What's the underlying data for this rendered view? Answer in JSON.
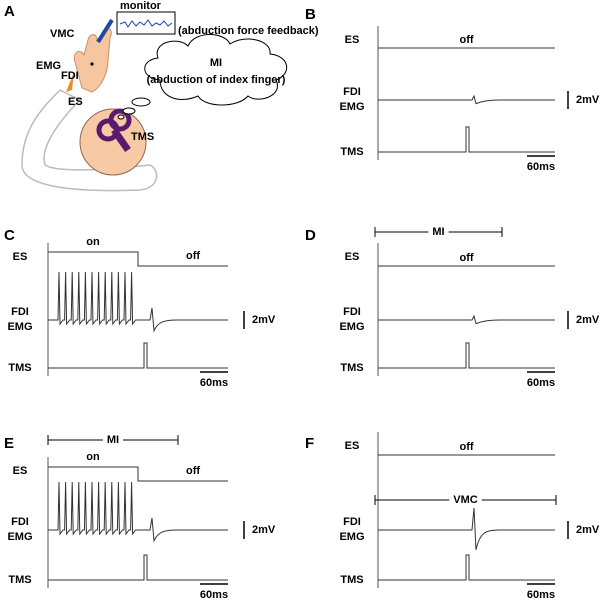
{
  "panel_a": {
    "label": "A",
    "monitor": "monitor",
    "feedback": "(abduction force feedback)",
    "vmc": "VMC",
    "emg": "EMG",
    "fdi": "FDI",
    "es": "ES",
    "tms": "TMS",
    "mi_title": "MI",
    "mi_detail": "(abduction of index finger)"
  },
  "panels": [
    {
      "label": "B",
      "es_row": "ES",
      "fdi_row": "FDI",
      "emg_row": "EMG",
      "tms_row": "TMS",
      "states": [
        "off"
      ],
      "scale_v": "2mV",
      "scale_t": "60ms"
    },
    {
      "label": "C",
      "es_row": "ES",
      "fdi_row": "FDI",
      "emg_row": "EMG",
      "tms_row": "TMS",
      "states": [
        "on",
        "off"
      ],
      "scale_v": "2mV",
      "scale_t": "60ms"
    },
    {
      "label": "D",
      "es_row": "ES",
      "fdi_row": "FDI",
      "emg_row": "EMG",
      "tms_row": "TMS",
      "states": [
        "off"
      ],
      "scale_v": "2mV",
      "scale_t": "60ms",
      "interval": "MI"
    },
    {
      "label": "E",
      "es_row": "ES",
      "fdi_row": "FDI",
      "emg_row": "EMG",
      "tms_row": "TMS",
      "states": [
        "on",
        "off"
      ],
      "scale_v": "2mV",
      "scale_t": "60ms",
      "interval": "MI"
    },
    {
      "label": "F",
      "es_row": "ES",
      "fdi_row": "FDI",
      "emg_row": "EMG",
      "tms_row": "TMS",
      "states": [
        "off"
      ],
      "scale_v": "2mV",
      "scale_t": "60ms",
      "interval": "VMC"
    }
  ]
}
